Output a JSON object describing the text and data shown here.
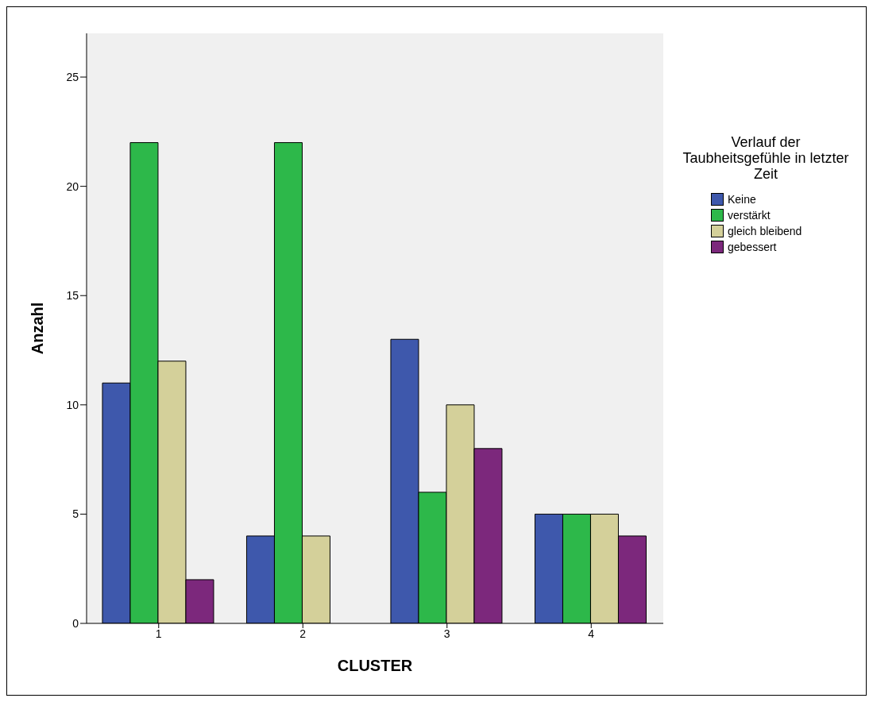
{
  "chart_data": {
    "type": "bar",
    "xlabel": "CLUSTER",
    "ylabel": "Anzahl",
    "legend_title": "Verlauf der Taubheitsgefühle in letzter Zeit",
    "categories": [
      "1",
      "2",
      "3",
      "4"
    ],
    "series": [
      {
        "name": "Keine",
        "color": "#3e58ac",
        "values": [
          11,
          4,
          13,
          5
        ]
      },
      {
        "name": "verstärkt",
        "color": "#2db84a",
        "values": [
          22,
          22,
          6,
          5
        ]
      },
      {
        "name": "gleich bleibend",
        "color": "#d4d09a",
        "values": [
          12,
          4,
          10,
          5
        ]
      },
      {
        "name": "gebessert",
        "color": "#7c287c",
        "values": [
          2,
          null,
          8,
          4
        ]
      }
    ],
    "ylim": [
      0,
      27
    ],
    "yticks": [
      0,
      5,
      10,
      15,
      20,
      25
    ],
    "grid": false,
    "legend": "right"
  }
}
